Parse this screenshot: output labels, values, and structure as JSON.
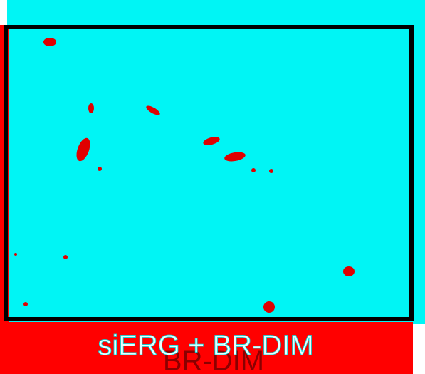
{
  "label": "siERG + BR-DIM",
  "overlay_label": "BR-DIM"
}
